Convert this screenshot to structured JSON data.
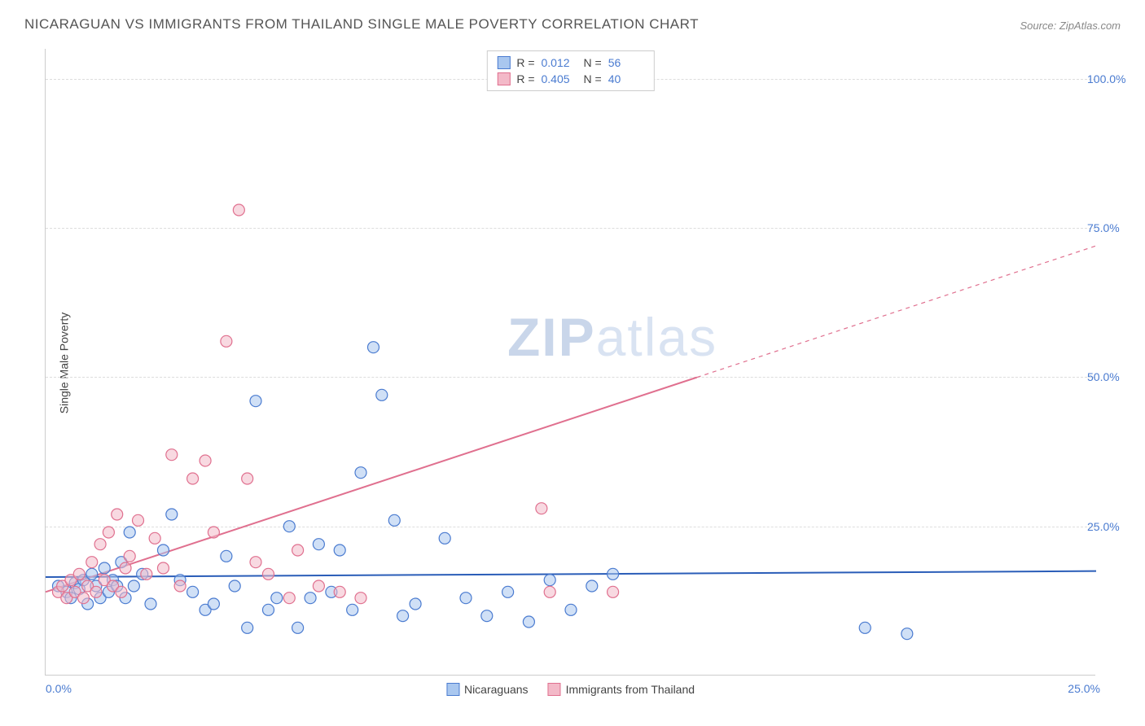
{
  "title": "NICARAGUAN VS IMMIGRANTS FROM THAILAND SINGLE MALE POVERTY CORRELATION CHART",
  "source": "Source: ZipAtlas.com",
  "ylabel": "Single Male Poverty",
  "watermark_zip": "ZIP",
  "watermark_atlas": "atlas",
  "chart": {
    "type": "scatter",
    "xlim": [
      0,
      25
    ],
    "ylim": [
      0,
      105
    ],
    "yticks": [
      25,
      50,
      75,
      100
    ],
    "ytick_labels": [
      "25.0%",
      "50.0%",
      "75.0%",
      "100.0%"
    ],
    "xtick_labels": [
      "0.0%",
      "25.0%"
    ],
    "grid_color": "#dddddd",
    "axis_color": "#cccccc",
    "tick_color": "#4a7bd0",
    "background_color": "#ffffff",
    "marker_radius": 7,
    "marker_stroke_width": 1.2,
    "line_width_solid": 2,
    "line_width_dashed": 1.2,
    "series": [
      {
        "name": "Nicaraguans",
        "fill_color": "#a9c7ef",
        "stroke_color": "#4a7bd0",
        "fill_opacity": 0.55,
        "legend_swatch_fill": "#a9c7ef",
        "legend_swatch_border": "#4a7bd0",
        "stats": {
          "R": "0.012",
          "N": "56"
        },
        "trend": {
          "y_at_x0": 16.5,
          "y_at_x25": 17.5,
          "solid_until_x": 25,
          "line_color": "#2a5db8"
        },
        "points": [
          [
            0.3,
            15
          ],
          [
            0.5,
            14
          ],
          [
            0.6,
            13
          ],
          [
            0.7,
            15.5
          ],
          [
            0.8,
            14.5
          ],
          [
            0.9,
            16
          ],
          [
            1.0,
            12
          ],
          [
            1.1,
            17
          ],
          [
            1.2,
            15
          ],
          [
            1.3,
            13
          ],
          [
            1.4,
            18
          ],
          [
            1.5,
            14
          ],
          [
            1.6,
            16
          ],
          [
            1.7,
            15
          ],
          [
            1.8,
            19
          ],
          [
            1.9,
            13
          ],
          [
            2.0,
            24
          ],
          [
            2.1,
            15
          ],
          [
            2.3,
            17
          ],
          [
            2.5,
            12
          ],
          [
            2.8,
            21
          ],
          [
            3.0,
            27
          ],
          [
            3.2,
            16
          ],
          [
            3.5,
            14
          ],
          [
            3.8,
            11
          ],
          [
            4.0,
            12
          ],
          [
            4.3,
            20
          ],
          [
            4.5,
            15
          ],
          [
            4.8,
            8
          ],
          [
            5.0,
            46
          ],
          [
            5.3,
            11
          ],
          [
            5.5,
            13
          ],
          [
            5.8,
            25
          ],
          [
            6.0,
            8
          ],
          [
            6.3,
            13
          ],
          [
            6.5,
            22
          ],
          [
            6.8,
            14
          ],
          [
            7.0,
            21
          ],
          [
            7.3,
            11
          ],
          [
            7.5,
            34
          ],
          [
            7.8,
            55
          ],
          [
            8.0,
            47
          ],
          [
            8.3,
            26
          ],
          [
            8.5,
            10
          ],
          [
            8.8,
            12
          ],
          [
            9.5,
            23
          ],
          [
            10.0,
            13
          ],
          [
            10.5,
            10
          ],
          [
            11.0,
            14
          ],
          [
            11.5,
            9
          ],
          [
            12.0,
            16
          ],
          [
            12.5,
            11
          ],
          [
            13.0,
            15
          ],
          [
            13.5,
            17
          ],
          [
            19.5,
            8
          ],
          [
            20.5,
            7
          ]
        ]
      },
      {
        "name": "Immigrants from Thailand",
        "fill_color": "#f3b9c8",
        "stroke_color": "#e0708f",
        "fill_opacity": 0.55,
        "legend_swatch_fill": "#f3b9c8",
        "legend_swatch_border": "#e0708f",
        "stats": {
          "R": "0.405",
          "N": "40"
        },
        "trend": {
          "y_at_x0": 14,
          "y_at_x25": 72,
          "solid_until_x": 15.5,
          "line_color": "#e0708f"
        },
        "points": [
          [
            0.3,
            14
          ],
          [
            0.4,
            15
          ],
          [
            0.5,
            13
          ],
          [
            0.6,
            16
          ],
          [
            0.7,
            14
          ],
          [
            0.8,
            17
          ],
          [
            0.9,
            13
          ],
          [
            1.0,
            15
          ],
          [
            1.1,
            19
          ],
          [
            1.2,
            14
          ],
          [
            1.3,
            22
          ],
          [
            1.4,
            16
          ],
          [
            1.5,
            24
          ],
          [
            1.6,
            15
          ],
          [
            1.7,
            27
          ],
          [
            1.8,
            14
          ],
          [
            1.9,
            18
          ],
          [
            2.0,
            20
          ],
          [
            2.2,
            26
          ],
          [
            2.4,
            17
          ],
          [
            2.6,
            23
          ],
          [
            2.8,
            18
          ],
          [
            3.0,
            37
          ],
          [
            3.2,
            15
          ],
          [
            3.5,
            33
          ],
          [
            3.8,
            36
          ],
          [
            4.0,
            24
          ],
          [
            4.3,
            56
          ],
          [
            4.6,
            78
          ],
          [
            4.8,
            33
          ],
          [
            5.0,
            19
          ],
          [
            5.3,
            17
          ],
          [
            5.8,
            13
          ],
          [
            6.0,
            21
          ],
          [
            6.5,
            15
          ],
          [
            7.0,
            14
          ],
          [
            7.5,
            13
          ],
          [
            11.8,
            28
          ],
          [
            12.0,
            14
          ],
          [
            13.5,
            14
          ]
        ]
      }
    ],
    "stats_legend_labels": {
      "R": "R =",
      "N": "N ="
    }
  }
}
